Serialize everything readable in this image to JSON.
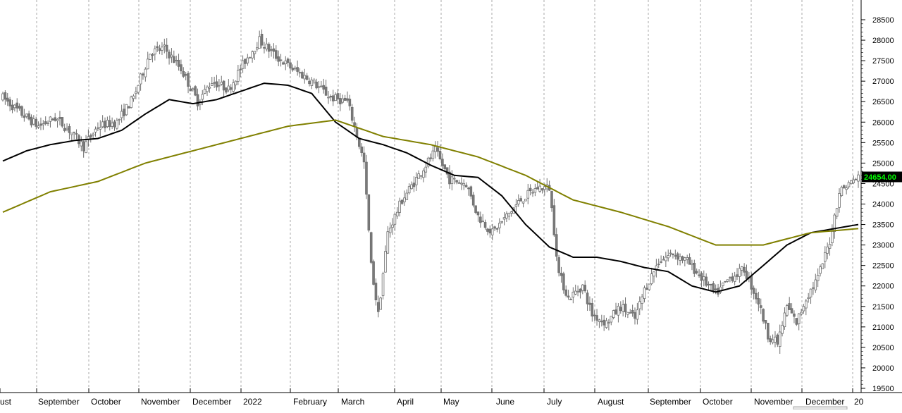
{
  "chart_data": {
    "type": "candlestick",
    "last_price_label": "24654.00",
    "x_tick_labels": [
      "ust",
      "September",
      "October",
      "November",
      "December",
      "2022",
      "February",
      "March",
      "April",
      "May",
      "June",
      "July",
      "August",
      "September",
      "October",
      "November",
      "December",
      "20"
    ],
    "y_tick_labels": [
      "28500",
      "28000",
      "27500",
      "27000",
      "26500",
      "26000",
      "25500",
      "25000",
      "24500",
      "24000",
      "23500",
      "23000",
      "22500",
      "22000",
      "21500",
      "21000",
      "20500",
      "20000",
      "19500"
    ],
    "ylim": [
      19500,
      28500
    ],
    "grid": "vertical dashed",
    "colors": {
      "candles": "#808080",
      "ma_fast": "#000000",
      "ma_slow": "#808000",
      "price_box": "#000000",
      "price_text": "#00ff00"
    },
    "series": [
      {
        "x": [
          0,
          10,
          20,
          30,
          40,
          50,
          60,
          70,
          80,
          90,
          100,
          110,
          120,
          130,
          140,
          150,
          160,
          170,
          180,
          190,
          200,
          210,
          220,
          230,
          240,
          250,
          260,
          270,
          280,
          290,
          300,
          310,
          320,
          330,
          340,
          350,
          360
        ],
        "y": [
          25050,
          25300,
          25450,
          25550,
          25600,
          25800,
          26200,
          26550,
          26450,
          26550,
          26750,
          26950,
          26900,
          26700,
          26000,
          25600,
          25450,
          25250,
          24950,
          24700,
          24650,
          24200,
          23500,
          22950,
          22700,
          22700,
          22600,
          22450,
          22350,
          22000,
          21850,
          22000,
          22500,
          23000,
          23300,
          23400,
          23500
        ]
      },
      {
        "x": [
          0,
          20,
          40,
          60,
          80,
          100,
          120,
          140,
          160,
          180,
          200,
          220,
          240,
          260,
          280,
          300,
          320,
          340,
          360
        ],
        "y": [
          23800,
          24300,
          24550,
          25000,
          25300,
          25600,
          25900,
          26050,
          25650,
          25450,
          25150,
          24700,
          24100,
          23800,
          23450,
          23000,
          23000,
          23300,
          23400
        ]
      }
    ]
  }
}
